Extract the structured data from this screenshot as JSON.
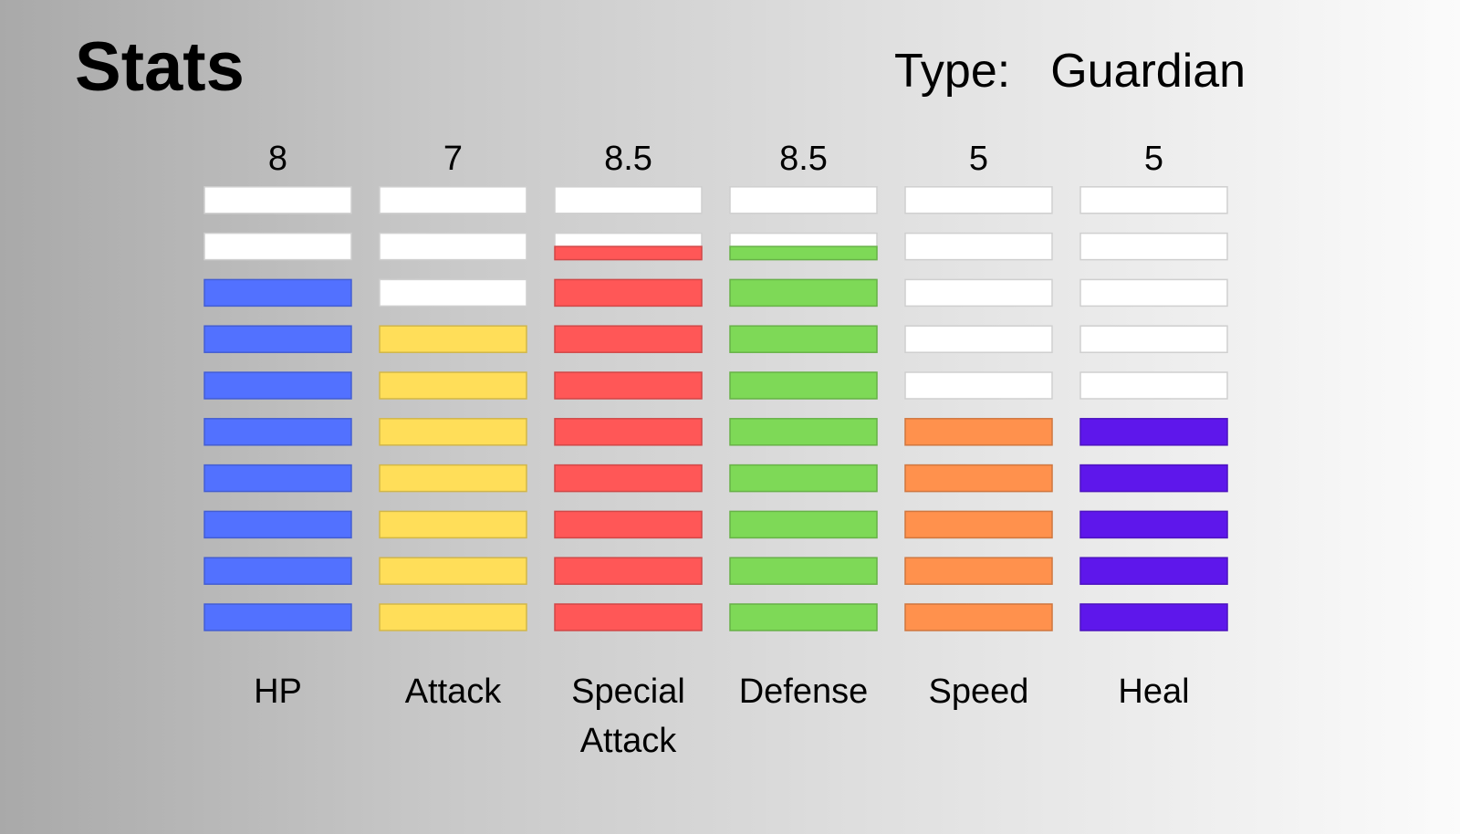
{
  "header": {
    "title": "Stats",
    "type_label": "Type:",
    "type_value": "Guardian"
  },
  "chart_data": {
    "type": "bar",
    "segments_per_bar": 10,
    "categories": [
      [
        "HP"
      ],
      [
        "Attack"
      ],
      [
        "Special",
        "Attack"
      ],
      [
        "Defense"
      ],
      [
        "Speed"
      ],
      [
        "Heal"
      ]
    ],
    "values": [
      8,
      7,
      8.5,
      8.5,
      5,
      5
    ],
    "value_labels": [
      "8",
      "7",
      "8.5",
      "8.5",
      "5",
      "5"
    ],
    "colors": [
      "#5271ff",
      "#ffde59",
      "#ff5757",
      "#7ed957",
      "#ff914d",
      "#5e17eb"
    ],
    "empty_color": "#ffffff",
    "ylim": [
      0,
      10
    ]
  }
}
